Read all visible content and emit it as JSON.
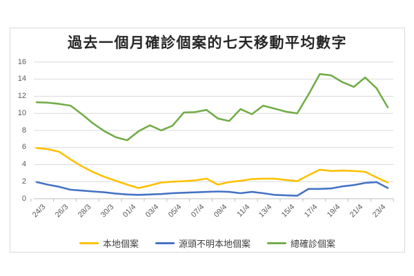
{
  "chart_data": {
    "type": "line",
    "title": "過去一個月確診個案的七天移動平均數字",
    "categories": [
      "24/3",
      "25/3",
      "26/3",
      "27/3",
      "28/3",
      "29/3",
      "30/3",
      "31/3",
      "01/4",
      "02/4",
      "03/4",
      "04/4",
      "05/4",
      "06/4",
      "07/4",
      "08/4",
      "09/4",
      "10/4",
      "11/4",
      "12/4",
      "13/4",
      "14/4",
      "15/4",
      "16/4",
      "17/4",
      "18/4",
      "19/4",
      "20/4",
      "21/4",
      "22/4",
      "23/4",
      "24/4"
    ],
    "x_label_interval": 2,
    "x_labels_shown": [
      "24/3",
      "26/3",
      "28/3",
      "30/3",
      "01/4",
      "03/4",
      "05/4",
      "07/4",
      "09/4",
      "11/4",
      "13/4",
      "15/4",
      "17/4",
      "19/4",
      "21/4",
      "23/4"
    ],
    "series": [
      {
        "name": "本地個案",
        "slug": "local-cases",
        "color": "#FFC000",
        "values": [
          5.95,
          5.8,
          5.5,
          4.6,
          3.8,
          3.1,
          2.55,
          2.1,
          1.65,
          1.25,
          1.55,
          1.9,
          2.0,
          2.05,
          2.15,
          2.35,
          1.65,
          1.95,
          2.1,
          2.3,
          2.35,
          2.35,
          2.2,
          2.05,
          2.75,
          3.4,
          3.25,
          3.3,
          3.25,
          3.15,
          2.5,
          1.9
        ]
      },
      {
        "name": "源頭不明本地個案",
        "slug": "unknown-source-local-cases",
        "color": "#4472C4",
        "values": [
          1.95,
          1.65,
          1.4,
          1.05,
          0.95,
          0.85,
          0.75,
          0.6,
          0.5,
          0.45,
          0.5,
          0.55,
          0.65,
          0.7,
          0.75,
          0.8,
          0.85,
          0.8,
          0.65,
          0.8,
          0.65,
          0.45,
          0.4,
          0.35,
          1.15,
          1.15,
          1.2,
          1.45,
          1.6,
          1.85,
          1.95,
          1.25
        ]
      },
      {
        "name": "總確診個案",
        "slug": "total-confirmed-cases",
        "color": "#70AD47",
        "values": [
          11.3,
          11.25,
          11.1,
          10.9,
          9.9,
          8.8,
          7.9,
          7.2,
          6.85,
          7.9,
          8.6,
          8.0,
          8.55,
          10.1,
          10.15,
          10.4,
          9.4,
          9.1,
          10.5,
          9.9,
          10.9,
          10.55,
          10.2,
          10.0,
          12.2,
          14.6,
          14.45,
          13.65,
          13.1,
          14.2,
          12.95,
          10.7
        ]
      }
    ],
    "ylim": [
      0,
      16
    ],
    "ytick_step": 2,
    "y_tick_labels": [
      "0",
      "2",
      "4",
      "6",
      "8",
      "10",
      "12",
      "14",
      "16"
    ],
    "grid": true,
    "legend_position": "bottom",
    "colors": {
      "gridline": "#D9D9D9",
      "axis_line": "#BFBFBF",
      "axis_text": "#595959",
      "title_text": "#262626",
      "chart_border": "#D9D9D9"
    }
  }
}
